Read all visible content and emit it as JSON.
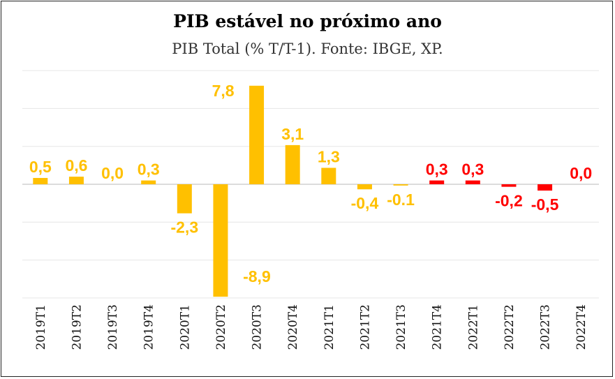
{
  "chart_data": {
    "type": "bar",
    "title": "PIB estável no próximo ano",
    "subtitle": "PIB Total (% T/T-1). Fonte: IBGE, XP.",
    "categories": [
      "2019T1",
      "2019T2",
      "2019T3",
      "2019T4",
      "2020T1",
      "2020T2",
      "2020T3",
      "2020T4",
      "2021T1",
      "2021T2",
      "2021T3",
      "2021T4",
      "2022T1",
      "2022T2",
      "2022T3",
      "2022T4"
    ],
    "values": [
      0.5,
      0.6,
      0.0,
      0.3,
      -2.3,
      -8.9,
      7.8,
      3.1,
      1.3,
      -0.4,
      -0.1,
      0.3,
      0.3,
      -0.2,
      -0.5,
      0.0
    ],
    "value_labels": [
      "0,5",
      "0,6",
      "0,0",
      "0,3",
      "-2,3",
      "-8,9",
      "7,8",
      "3,1",
      "1,3",
      "-0,4",
      "-0.1",
      "0,3",
      "0,3",
      "-0,2",
      "-0,5",
      "0,0"
    ],
    "label_placement": [
      "above",
      "above",
      "above",
      "above",
      "below",
      "below",
      "above",
      "above",
      "above",
      "below",
      "below",
      "above",
      "above",
      "below",
      "below",
      "above"
    ],
    "label_above_offset": [
      0,
      0,
      0,
      0,
      0,
      0,
      0,
      0,
      0,
      0,
      0,
      0,
      0,
      0,
      0,
      0
    ],
    "series_kind": [
      "historical",
      "historical",
      "historical",
      "historical",
      "historical",
      "historical",
      "historical",
      "historical",
      "historical",
      "historical",
      "historical",
      "forecast",
      "forecast",
      "forecast",
      "forecast",
      "forecast"
    ],
    "colors": {
      "historical": "#FFC000",
      "forecast": "#FF0000",
      "grid": "#E6E6E6",
      "zero_line": "#D0D0D0"
    },
    "ylim": [
      -9,
      9
    ],
    "grid": true,
    "legend": "none",
    "xlabel": "",
    "ylabel": ""
  }
}
